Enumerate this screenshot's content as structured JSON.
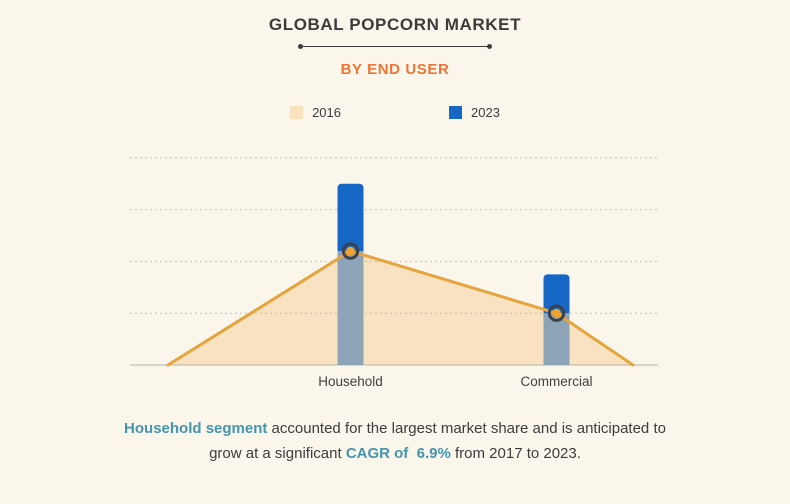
{
  "header": {
    "title": "GLOBAL POPCORN MARKET",
    "subtitle": "BY END USER"
  },
  "legend": [
    {
      "label": "2016",
      "color": "#fbe2bf"
    },
    {
      "label": "2023",
      "color": "#1667c5"
    }
  ],
  "chart_data": {
    "type": "combo-area-bar",
    "title": "GLOBAL POPCORN MARKET",
    "subtitle": "BY END USER",
    "categories": [
      "Household",
      "Commercial"
    ],
    "series": [
      {
        "name": "2016",
        "type": "area",
        "color": "#f8e2c1",
        "line_color": "#e5a43d",
        "marker_color": "#f0a42c",
        "marker_ring_color": "#3e4147",
        "values": [
          2.2,
          1.0
        ]
      },
      {
        "name": "2023",
        "type": "bar",
        "color": "#1667c5",
        "overlap_color": "#8da4b8",
        "values": [
          3.5,
          1.75
        ]
      }
    ],
    "xlabel": "",
    "ylabel": "",
    "ylim": [
      0,
      4.5
    ],
    "y_axis_labels_visible": false,
    "gridline_count": 4,
    "grid": "dashed-horizontal",
    "legend_position": "top",
    "units": "relative (gridline steps; no numeric axis shown)"
  },
  "footnote": {
    "highlight1": "Household segment",
    "text1": " accounted for the largest market share and is anticipated to",
    "text2": "grow at a significant ",
    "highlight2": "CAGR of  6.9%",
    "text3": " from 2017 to 2023."
  }
}
